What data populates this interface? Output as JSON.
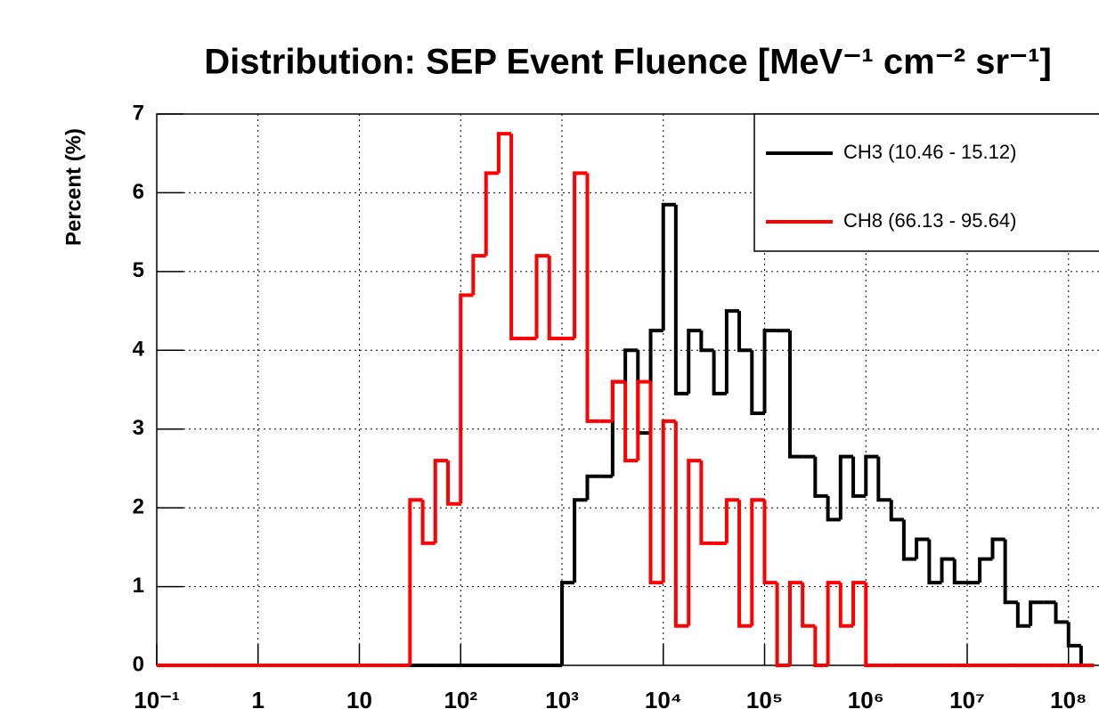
{
  "chart_data": {
    "type": "histogram",
    "title": "Distribution: SEP Event Fluence [MeV⁻¹ cm⁻² sr⁻¹]",
    "y_label": "Percent (%)",
    "xscale": "log",
    "grid": true,
    "legend": "upper right",
    "bins": [
      0.1,
      0.133,
      0.178,
      0.237,
      0.316,
      0.422,
      0.562,
      0.75,
      1,
      1.33,
      1.78,
      2.37,
      3.16,
      4.22,
      5.62,
      7.5,
      10,
      13.3,
      17.8,
      23.7,
      31.6,
      42.2,
      56.2,
      75,
      100,
      133,
      178,
      237,
      316,
      422,
      562,
      750,
      1000,
      1330,
      1780,
      2370,
      3160,
      4220,
      5620,
      7500,
      10000,
      13300,
      17800,
      23700,
      31600,
      42200,
      56200,
      75000,
      100000,
      133000,
      178000,
      237000,
      316000,
      422000,
      562000,
      750000,
      1000000,
      1330000,
      1780000,
      2370000,
      3160000,
      4220000,
      5620000,
      7500000,
      10000000,
      13300000,
      17800000,
      23700000,
      31600000,
      42200000,
      56200000,
      75000000,
      100000000,
      133000000,
      178000000
    ],
    "series": [
      {
        "name": "CH3 (10.46 - 15.12)",
        "color": "#000000",
        "values": [
          0,
          0,
          0,
          0,
          0,
          0,
          0,
          0,
          0,
          0,
          0,
          0,
          0,
          0,
          0,
          0,
          0,
          0,
          0,
          0,
          0,
          0,
          0,
          0,
          0,
          0,
          0,
          0,
          0,
          0,
          0,
          0,
          1.05,
          2.1,
          2.4,
          2.4,
          3.6,
          4.0,
          2.95,
          4.25,
          5.85,
          3.45,
          4.25,
          4.0,
          3.45,
          4.5,
          4.0,
          3.2,
          4.25,
          4.25,
          2.65,
          2.65,
          2.15,
          1.85,
          2.65,
          2.15,
          2.65,
          2.1,
          1.85,
          1.35,
          1.6,
          1.05,
          1.35,
          1.05,
          1.05,
          1.35,
          1.6,
          0.8,
          0.5,
          0.8,
          0.8,
          0.55,
          0.25,
          0
        ]
      },
      {
        "name": "CH8 (66.13 - 95.64)",
        "color": "#ff0000",
        "values": [
          0,
          0,
          0,
          0,
          0,
          0,
          0,
          0,
          0,
          0,
          0,
          0,
          0,
          0,
          0,
          0,
          0,
          0,
          0,
          0,
          2.1,
          1.55,
          2.6,
          2.05,
          4.7,
          5.2,
          6.25,
          6.75,
          4.15,
          4.15,
          5.2,
          4.15,
          4.15,
          6.25,
          3.1,
          3.1,
          3.6,
          2.6,
          3.6,
          1.05,
          3.1,
          0.5,
          2.6,
          1.55,
          1.55,
          2.1,
          0.5,
          2.1,
          1.05,
          0,
          1.05,
          0.5,
          0,
          1.05,
          0.5,
          1.05,
          0,
          0,
          0,
          0,
          0,
          0,
          0,
          0,
          0,
          0,
          0,
          0,
          0,
          0,
          0,
          0,
          0,
          0
        ]
      }
    ],
    "xlim": [
      0.1,
      200000000
    ],
    "ylim": [
      0,
      7
    ],
    "xticks": [
      {
        "value": 0.1,
        "label": "10⁻¹"
      },
      1,
      10,
      {
        "value": 100,
        "label": "10²"
      },
      {
        "value": 1000,
        "label": "10³"
      },
      {
        "value": 10000,
        "label": "10⁴"
      },
      {
        "value": 100000,
        "label": "10⁵"
      },
      {
        "value": 1000000,
        "label": "10⁶"
      },
      {
        "value": 10000000,
        "label": "10⁷"
      },
      {
        "value": 100000000,
        "label": "10⁸"
      }
    ],
    "yticks": [
      0,
      1,
      2,
      3,
      4,
      5,
      6,
      7
    ]
  }
}
